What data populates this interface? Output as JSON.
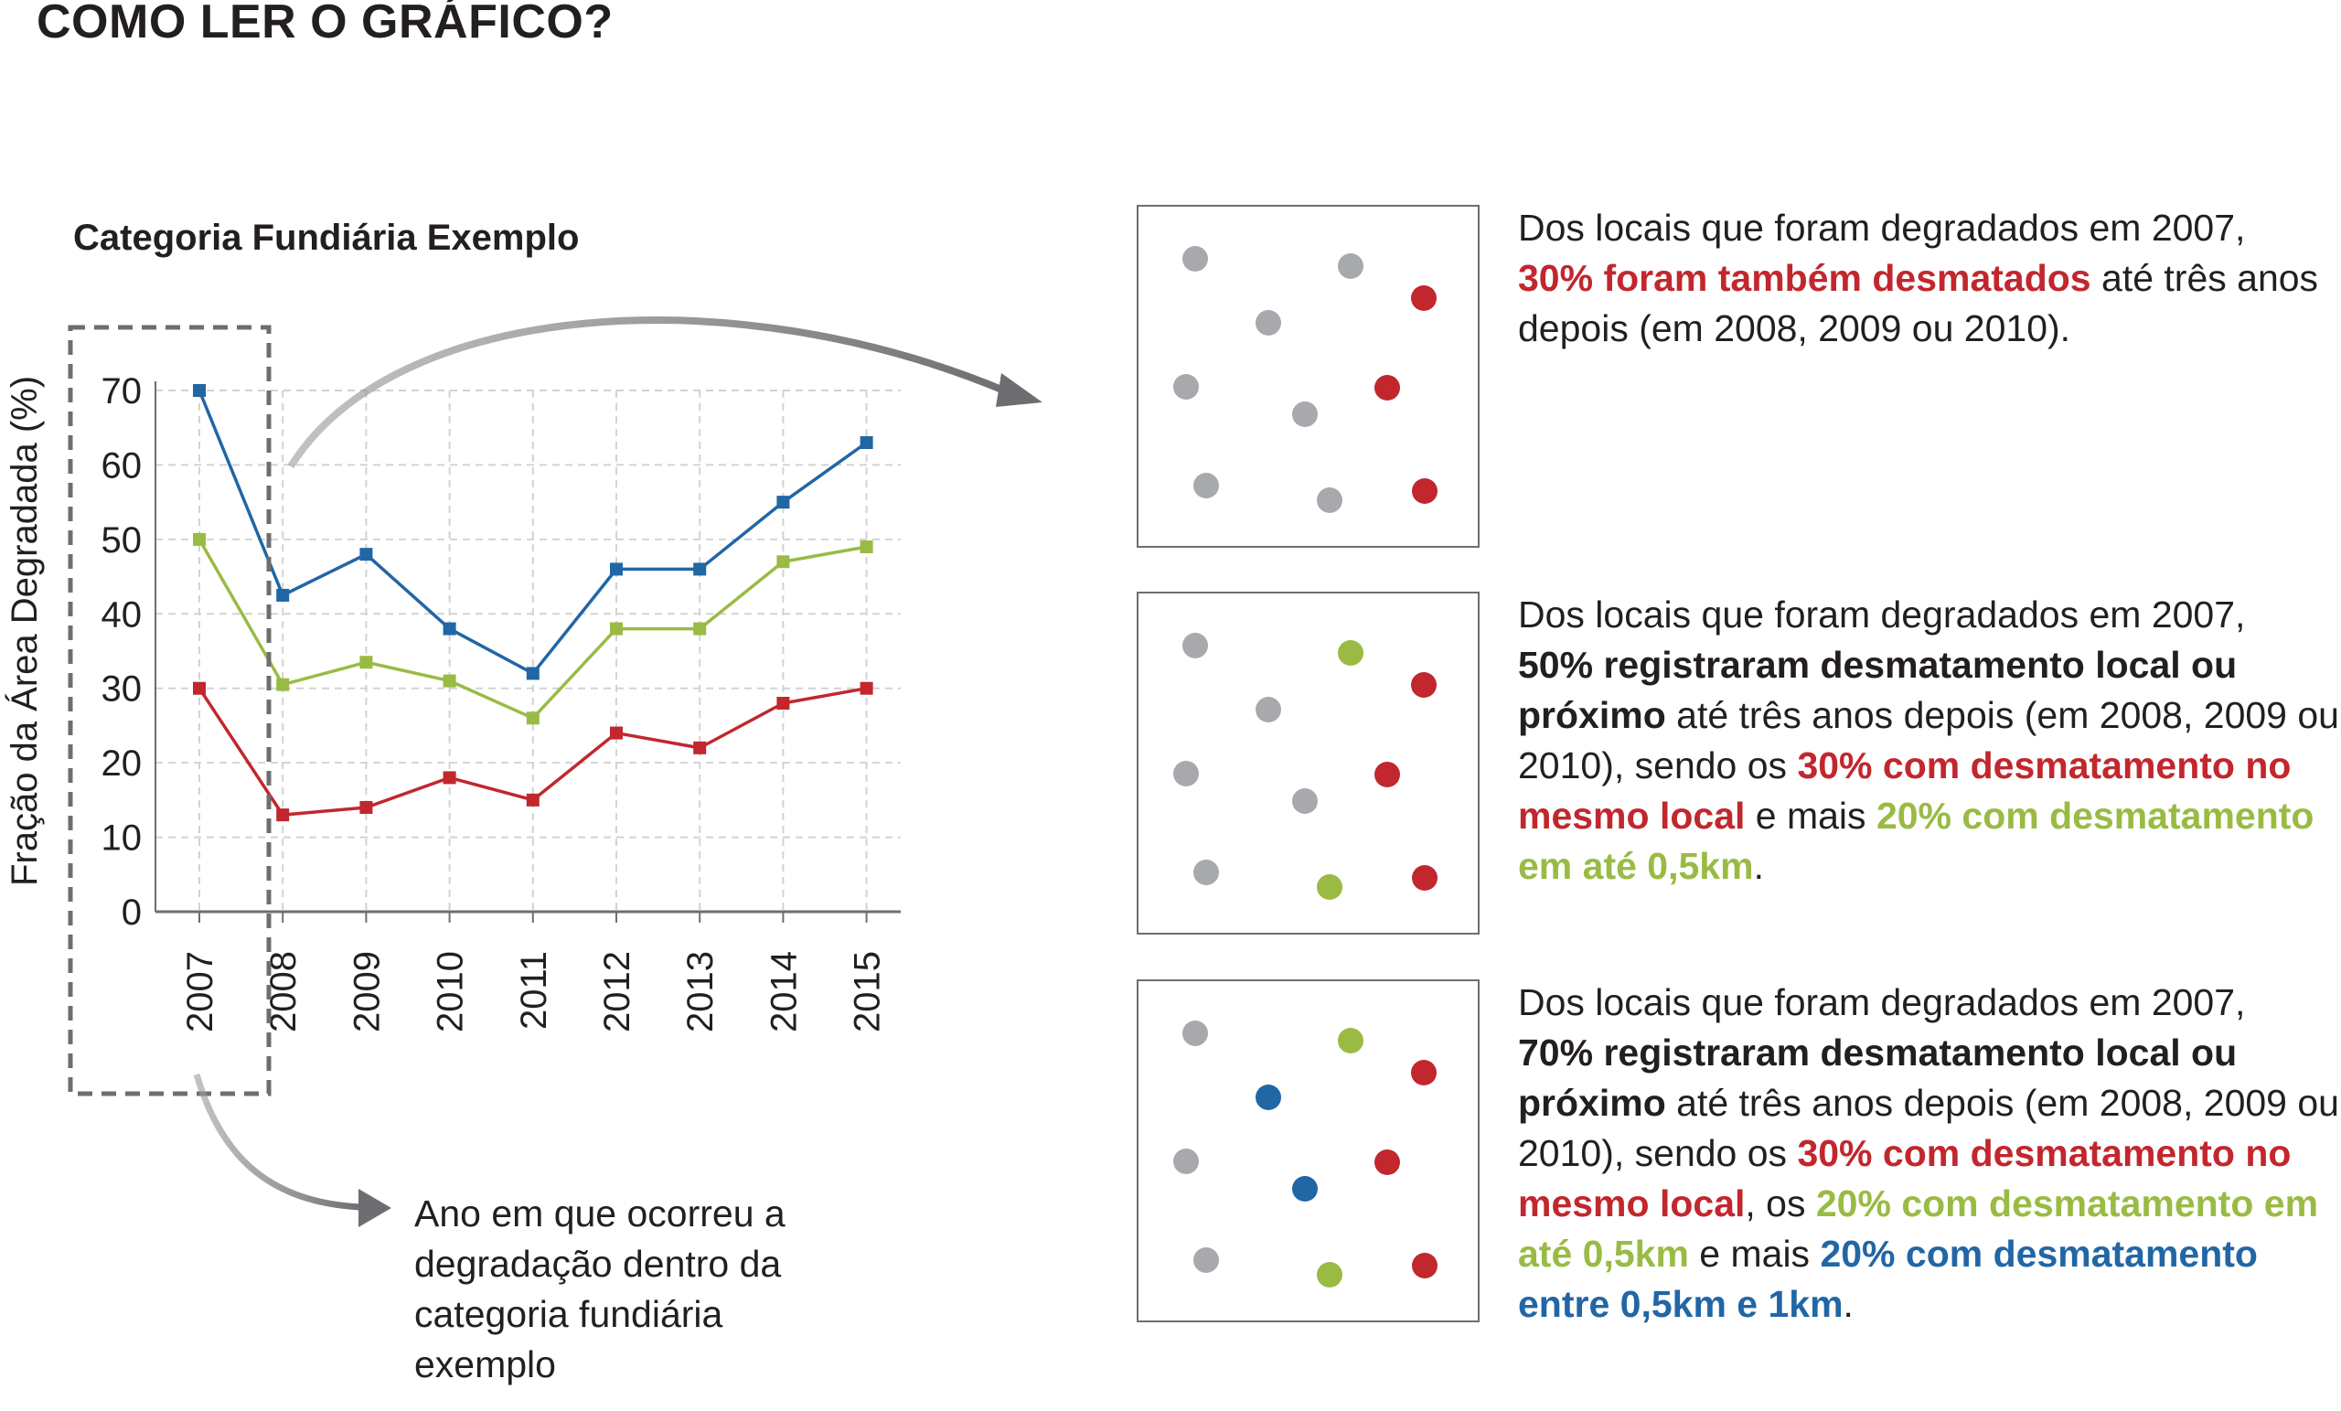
{
  "page_title": "COMO LER O GRÁFICO?",
  "chart_data": {
    "type": "line",
    "title": "Categoria Fundiária Exemplo",
    "xlabel": "",
    "ylabel": "Fração da Área Degradada (%)",
    "categories": [
      "2007",
      "2008",
      "2009",
      "2010",
      "2011",
      "2012",
      "2013",
      "2014",
      "2015"
    ],
    "yticks": [
      "0",
      "10",
      "20",
      "30",
      "40",
      "50",
      "60",
      "70"
    ],
    "ylim": [
      0,
      70
    ],
    "grid": true,
    "series": [
      {
        "color": "#2166a5",
        "values": [
          70,
          42.5,
          48,
          38,
          32,
          46,
          46,
          55,
          63
        ]
      },
      {
        "color": "#99bb44",
        "values": [
          50,
          30.5,
          33.5,
          31,
          26,
          38,
          38,
          47,
          49
        ]
      },
      {
        "color": "#c1272d",
        "values": [
          30,
          13,
          14,
          18,
          15,
          24,
          22,
          28,
          30
        ]
      }
    ]
  },
  "year_note": "Ano em que ocorreu a degradação dentro da categoria fundiária exemplo",
  "colors": {
    "gray": "#a7a9ac",
    "red": "#c1272d",
    "green": "#99bb44",
    "blue": "#2166a5"
  },
  "panels": [
    {
      "dots": [
        "gray",
        "gray",
        "red",
        "gray",
        "gray",
        "red",
        "gray",
        "gray",
        "gray",
        "red"
      ],
      "intro": "Dos locais que foram degradados em 2007,",
      "red": "30% foram também desmatados",
      "rest": " até três anos depois (em 2008, 2009 ou 2010)."
    },
    {
      "dots": [
        "gray",
        "green",
        "red",
        "gray",
        "gray",
        "red",
        "gray",
        "gray",
        "green",
        "red"
      ],
      "intro": "Dos locais que foram degradados em 2007,",
      "bold": "50% registraram desmatamento local ou próximo",
      "mid": " até três anos depois (em 2008, 2009 ou 2010), sendo os ",
      "red": "30% com desmatamento no mesmo local",
      "mid2": " e mais ",
      "green": "20% com desmatamento em até 0,5km",
      "end": "."
    },
    {
      "dots": [
        "gray",
        "green",
        "red",
        "blue",
        "gray",
        "red",
        "blue",
        "gray",
        "green",
        "red"
      ],
      "intro": "Dos locais que foram degradados em 2007,",
      "bold": "70% registraram desmatamento local ou próximo",
      "mid": " até três anos depois (em 2008, 2009 ou 2010), sendo os ",
      "red": "30% com desmatamento no mesmo local",
      "mid2": ", os ",
      "green": "20% com desmatamento em até 0,5km",
      "mid3": " e mais ",
      "blue": "20% com desmatamento entre 0,5km e 1km",
      "end": "."
    }
  ]
}
